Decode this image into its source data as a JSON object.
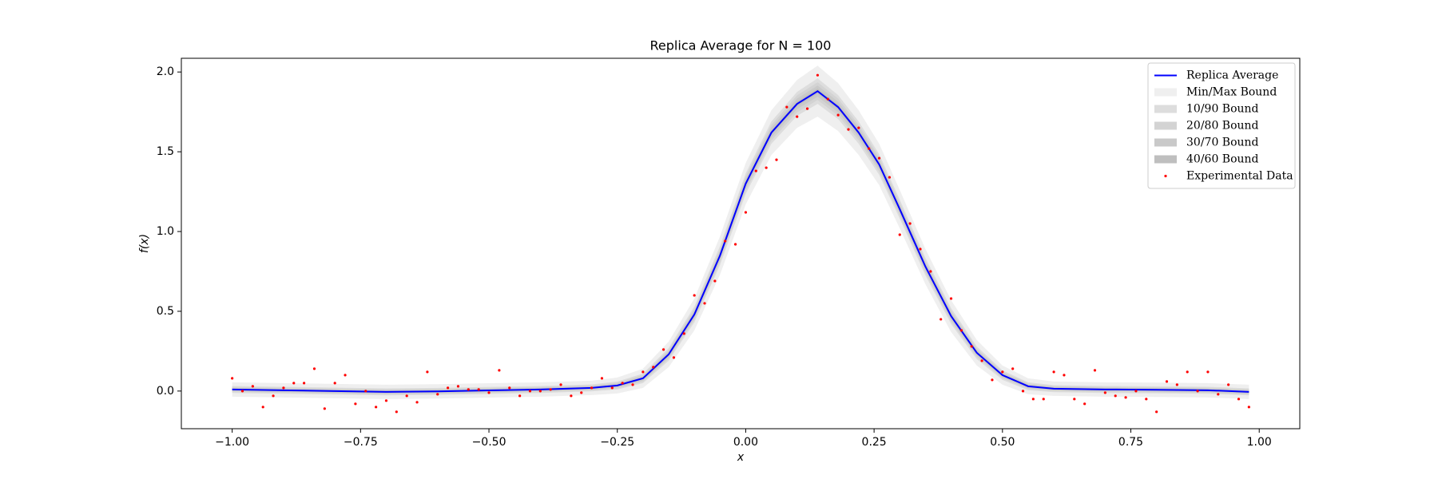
{
  "chart_data": {
    "type": "line",
    "title": "Replica Average for N = 100",
    "xlabel": "x",
    "ylabel": "f(x)",
    "x": [
      -1.0,
      -0.9,
      -0.8,
      -0.7,
      -0.6,
      -0.5,
      -0.4,
      -0.3,
      -0.25,
      -0.2,
      -0.15,
      -0.1,
      -0.05,
      0,
      0.05,
      0.1,
      0.14,
      0.18,
      0.22,
      0.26,
      0.3,
      0.35,
      0.4,
      0.45,
      0.5,
      0.55,
      0.6,
      0.7,
      0.8,
      0.9,
      0.98
    ],
    "series": [
      {
        "name": "Replica Average",
        "color": "#0000ff",
        "values": [
          0.01,
          0.005,
          0,
          -0.005,
          -0.002,
          0.004,
          0.01,
          0.02,
          0.035,
          0.08,
          0.23,
          0.48,
          0.85,
          1.3,
          1.62,
          1.8,
          1.88,
          1.78,
          1.62,
          1.42,
          1.14,
          0.78,
          0.47,
          0.24,
          0.1,
          0.03,
          0.015,
          0.01,
          0.008,
          0.005,
          -0.005
        ]
      }
    ],
    "bands": [
      {
        "name": "Min/Max Bound",
        "color": "#efefef",
        "lower": [
          -0.035,
          -0.04,
          -0.045,
          -0.05,
          -0.047,
          -0.041,
          -0.035,
          -0.025,
          -0.015,
          0.02,
          0.15,
          0.38,
          0.73,
          1.17,
          1.48,
          1.65,
          1.72,
          1.63,
          1.48,
          1.29,
          1.02,
          0.67,
          0.37,
          0.16,
          0.04,
          -0.02,
          -0.03,
          -0.035,
          -0.037,
          -0.04,
          -0.05
        ],
        "upper": [
          0.055,
          0.05,
          0.045,
          0.04,
          0.043,
          0.049,
          0.055,
          0.065,
          0.085,
          0.14,
          0.31,
          0.58,
          0.97,
          1.43,
          1.76,
          1.95,
          2.04,
          1.93,
          1.76,
          1.55,
          1.26,
          0.89,
          0.57,
          0.32,
          0.16,
          0.08,
          0.06,
          0.055,
          0.053,
          0.05,
          0.04
        ]
      },
      {
        "name": "10/90 Bound",
        "color": "#dddddd",
        "lower": [
          -0.012,
          -0.017,
          -0.022,
          -0.027,
          -0.024,
          -0.018,
          -0.012,
          -0.002,
          0.01,
          0.05,
          0.19,
          0.43,
          0.79,
          1.235,
          1.55,
          1.725,
          1.8,
          1.705,
          1.55,
          1.355,
          1.08,
          0.725,
          0.42,
          0.2,
          0.07,
          0.005,
          -0.007,
          -0.012,
          -0.014,
          -0.017,
          -0.027
        ],
        "upper": [
          0.032,
          0.027,
          0.022,
          0.017,
          0.02,
          0.026,
          0.032,
          0.042,
          0.06,
          0.11,
          0.27,
          0.53,
          0.91,
          1.365,
          1.69,
          1.875,
          1.96,
          1.855,
          1.69,
          1.485,
          1.2,
          0.835,
          0.52,
          0.28,
          0.13,
          0.055,
          0.037,
          0.032,
          0.03,
          0.027,
          0.017
        ]
      },
      {
        "name": "20/80 Bound",
        "color": "#d3d3d3",
        "lower": [
          -0.006,
          -0.011,
          -0.016,
          -0.021,
          -0.018,
          -0.012,
          -0.006,
          0.004,
          0.017,
          0.059,
          0.202,
          0.445,
          0.808,
          1.254,
          1.571,
          1.747,
          1.824,
          1.727,
          1.571,
          1.374,
          1.098,
          0.741,
          0.435,
          0.212,
          0.079,
          0.012,
          -0.001,
          -0.006,
          -0.008,
          -0.011,
          -0.021
        ],
        "upper": [
          0.026,
          0.021,
          0.016,
          0.011,
          0.014,
          0.02,
          0.026,
          0.036,
          0.053,
          0.101,
          0.258,
          0.515,
          0.892,
          1.346,
          1.669,
          1.853,
          1.936,
          1.833,
          1.669,
          1.466,
          1.182,
          0.819,
          0.505,
          0.268,
          0.121,
          0.048,
          0.031,
          0.026,
          0.024,
          0.021,
          0.011
        ]
      },
      {
        "name": "30/70 Bound",
        "color": "#c9c9c9",
        "lower": [
          0,
          -0.005,
          -0.01,
          -0.015,
          -0.012,
          -0.006,
          0,
          0.01,
          0.024,
          0.067,
          0.212,
          0.458,
          0.824,
          1.271,
          1.589,
          1.767,
          1.845,
          1.747,
          1.589,
          1.391,
          1.114,
          0.756,
          0.448,
          0.222,
          0.087,
          0.019,
          0.005,
          0,
          -0.002,
          -0.005,
          -0.015
        ],
        "upper": [
          0.02,
          0.015,
          0.01,
          0.005,
          0.008,
          0.014,
          0.02,
          0.03,
          0.046,
          0.093,
          0.248,
          0.502,
          0.876,
          1.329,
          1.651,
          1.833,
          1.915,
          1.813,
          1.651,
          1.449,
          1.166,
          0.804,
          0.492,
          0.258,
          0.113,
          0.041,
          0.025,
          0.02,
          0.018,
          0.015,
          0.005
        ]
      },
      {
        "name": "40/60 Bound",
        "color": "#bfbfbf",
        "lower": [
          0.005,
          0,
          -0.005,
          -0.01,
          -0.007,
          -0.001,
          0.005,
          0.015,
          0.03,
          0.074,
          0.222,
          0.47,
          0.838,
          1.287,
          1.606,
          1.785,
          1.864,
          1.765,
          1.606,
          1.407,
          1.128,
          0.769,
          0.46,
          0.232,
          0.094,
          0.025,
          0.01,
          0.005,
          0.003,
          0,
          -0.01
        ],
        "upper": [
          0.015,
          0.01,
          0.005,
          0,
          0.003,
          0.009,
          0.015,
          0.025,
          0.04,
          0.086,
          0.238,
          0.49,
          0.862,
          1.313,
          1.634,
          1.815,
          1.896,
          1.795,
          1.634,
          1.433,
          1.152,
          0.791,
          0.48,
          0.248,
          0.106,
          0.035,
          0.02,
          0.015,
          0.013,
          0.01,
          0
        ]
      }
    ],
    "scatter": {
      "name": "Experimental Data",
      "color": "#ff0000",
      "x": [
        -1.0,
        -0.98,
        -0.96,
        -0.94,
        -0.92,
        -0.9,
        -0.88,
        -0.86,
        -0.84,
        -0.82,
        -0.8,
        -0.78,
        -0.76,
        -0.74,
        -0.72,
        -0.7,
        -0.68,
        -0.66,
        -0.64,
        -0.62,
        -0.6,
        -0.58,
        -0.56,
        -0.54,
        -0.52,
        -0.5,
        -0.48,
        -0.46,
        -0.44,
        -0.42,
        -0.4,
        -0.38,
        -0.36,
        -0.34,
        -0.32,
        -0.3,
        -0.28,
        -0.26,
        -0.24,
        -0.22,
        -0.2,
        -0.18,
        -0.16,
        -0.14,
        -0.12,
        -0.1,
        -0.08,
        -0.06,
        -0.04,
        -0.02,
        0,
        0.02,
        0.04,
        0.06,
        0.08,
        0.1,
        0.12,
        0.14,
        0.16,
        0.18,
        0.2,
        0.22,
        0.24,
        0.26,
        0.28,
        0.3,
        0.32,
        0.34,
        0.36,
        0.38,
        0.4,
        0.42,
        0.44,
        0.46,
        0.48,
        0.5,
        0.52,
        0.54,
        0.56,
        0.58,
        0.6,
        0.62,
        0.64,
        0.66,
        0.68,
        0.7,
        0.72,
        0.74,
        0.76,
        0.78,
        0.8,
        0.82,
        0.84,
        0.86,
        0.88,
        0.9,
        0.92,
        0.94,
        0.96,
        0.98
      ],
      "values": [
        0.08,
        0,
        0.03,
        -0.1,
        -0.03,
        0.02,
        0.05,
        0.05,
        0.14,
        -0.11,
        0.05,
        0.1,
        -0.08,
        0,
        -0.1,
        -0.06,
        -0.13,
        -0.03,
        -0.07,
        0.12,
        -0.02,
        0.02,
        0.03,
        0.01,
        0.01,
        -0.01,
        0.13,
        0.02,
        -0.03,
        0,
        0,
        0.01,
        0.04,
        -0.03,
        -0.01,
        0.02,
        0.08,
        0.02,
        0.05,
        0.04,
        0.12,
        0.15,
        0.26,
        0.21,
        0.36,
        0.6,
        0.55,
        0.69,
        0.94,
        0.92,
        1.12,
        1.38,
        1.4,
        1.45,
        1.78,
        1.72,
        1.77,
        1.98,
        1.83,
        1.73,
        1.64,
        1.65,
        1.52,
        1.46,
        1.34,
        0.98,
        1.05,
        0.89,
        0.75,
        0.45,
        0.58,
        0.38,
        0.28,
        0.19,
        0.07,
        0.12,
        0.14,
        0,
        -0.05,
        -0.05,
        0.12,
        0.1,
        -0.05,
        -0.08,
        0.13,
        -0.01,
        -0.03,
        -0.04,
        0,
        -0.05,
        -0.13,
        0.06,
        0.04,
        0.12,
        0,
        0.12,
        -0.02,
        0.04,
        -0.05,
        -0.1
      ]
    },
    "xlim": [
      -1.099,
      1.079
    ],
    "ylim": [
      -0.236,
      2.086
    ],
    "xticks": [
      {
        "value": -1,
        "label": "−1.00"
      },
      {
        "value": -0.75,
        "label": "−0.75"
      },
      {
        "value": -0.5,
        "label": "−0.50"
      },
      {
        "value": -0.25,
        "label": "−0.25"
      },
      {
        "value": 0,
        "label": "0.00"
      },
      {
        "value": 0.25,
        "label": "0.25"
      },
      {
        "value": 0.5,
        "label": "0.50"
      },
      {
        "value": 0.75,
        "label": "0.75"
      },
      {
        "value": 1,
        "label": "1.00"
      }
    ],
    "yticks": [
      {
        "value": 0,
        "label": "0.0"
      },
      {
        "value": 0.5,
        "label": "0.5"
      },
      {
        "value": 1,
        "label": "1.0"
      },
      {
        "value": 1.5,
        "label": "1.5"
      },
      {
        "value": 2,
        "label": "2.0"
      }
    ],
    "legend": "upper right"
  }
}
